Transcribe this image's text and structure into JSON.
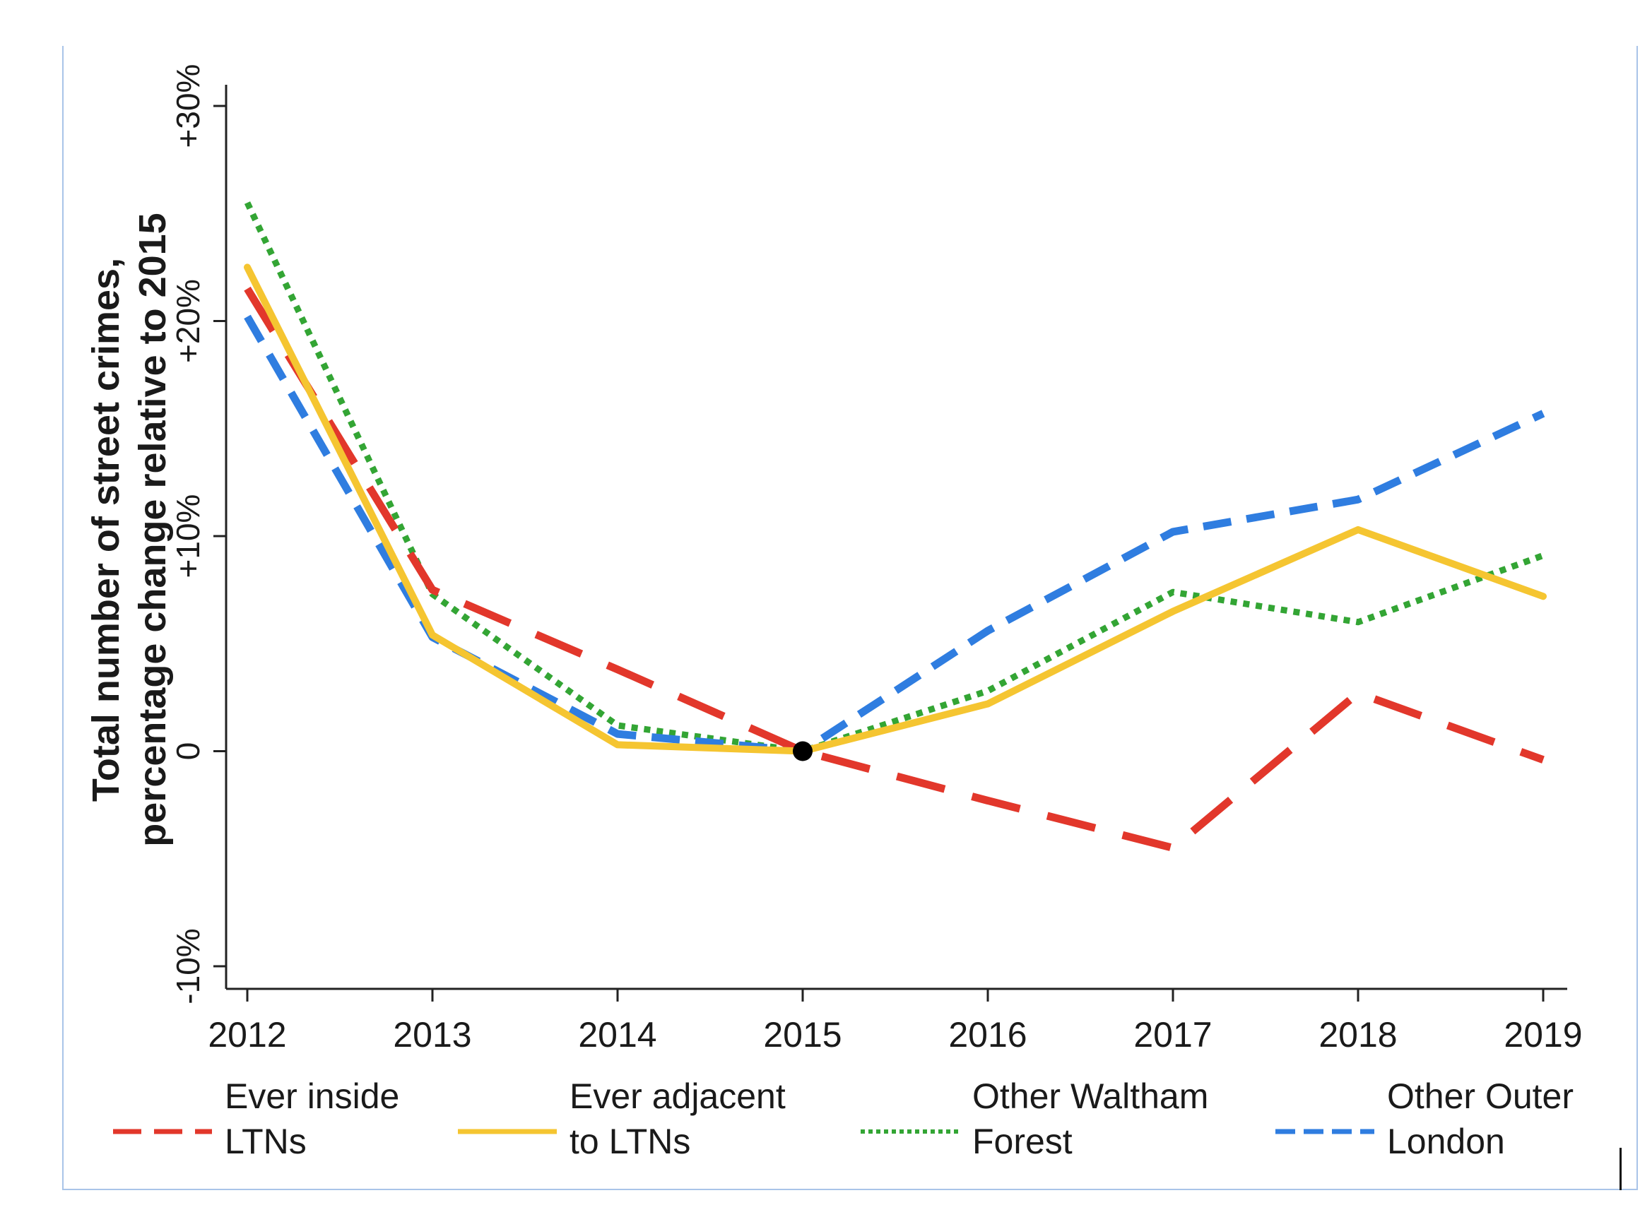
{
  "chart_data": {
    "type": "line",
    "title": "",
    "xlabel": "",
    "ylabel_lines": [
      "Total number of street crimes,",
      "percentage change relative to 2015"
    ],
    "x": [
      "2012",
      "2013",
      "2014",
      "2015",
      "2016",
      "2017",
      "2018",
      "2019"
    ],
    "ylim": [
      -10,
      30
    ],
    "yticks": [
      {
        "value": -10,
        "label": "-10%"
      },
      {
        "value": 0,
        "label": "0"
      },
      {
        "value": 10,
        "label": "+10%"
      },
      {
        "value": 20,
        "label": "+20%"
      },
      {
        "value": 30,
        "label": "+30%"
      }
    ],
    "reference_point": {
      "x": "2015",
      "y": 0
    },
    "series": [
      {
        "name": "Ever inside LTNs",
        "label_lines": [
          "Ever inside",
          "LTNs"
        ],
        "color": "#e2372b",
        "style": "long-dash",
        "values": [
          21.5,
          7.5,
          3.8,
          0,
          -2.3,
          -4.5,
          2.7,
          -0.4
        ]
      },
      {
        "name": "Ever adjacent to LTNs",
        "label_lines": [
          "Ever adjacent",
          "to LTNs"
        ],
        "color": "#f5c531",
        "style": "solid",
        "values": [
          22.5,
          5.4,
          0.3,
          0,
          2.2,
          6.5,
          10.3,
          7.2
        ]
      },
      {
        "name": "Other Waltham Forest",
        "label_lines": [
          "Other Waltham",
          "Forest"
        ],
        "color": "#33a534",
        "style": "dotted",
        "values": [
          25.5,
          7.3,
          1.2,
          0,
          2.8,
          7.4,
          6.0,
          9.1
        ]
      },
      {
        "name": "Other Outer London",
        "label_lines": [
          "Other Outer",
          "London"
        ],
        "color": "#2f7de0",
        "style": "dashed",
        "values": [
          20.2,
          5.3,
          0.8,
          0,
          5.6,
          10.2,
          11.7,
          15.7
        ]
      }
    ],
    "legend_position": "bottom",
    "grid": false
  }
}
